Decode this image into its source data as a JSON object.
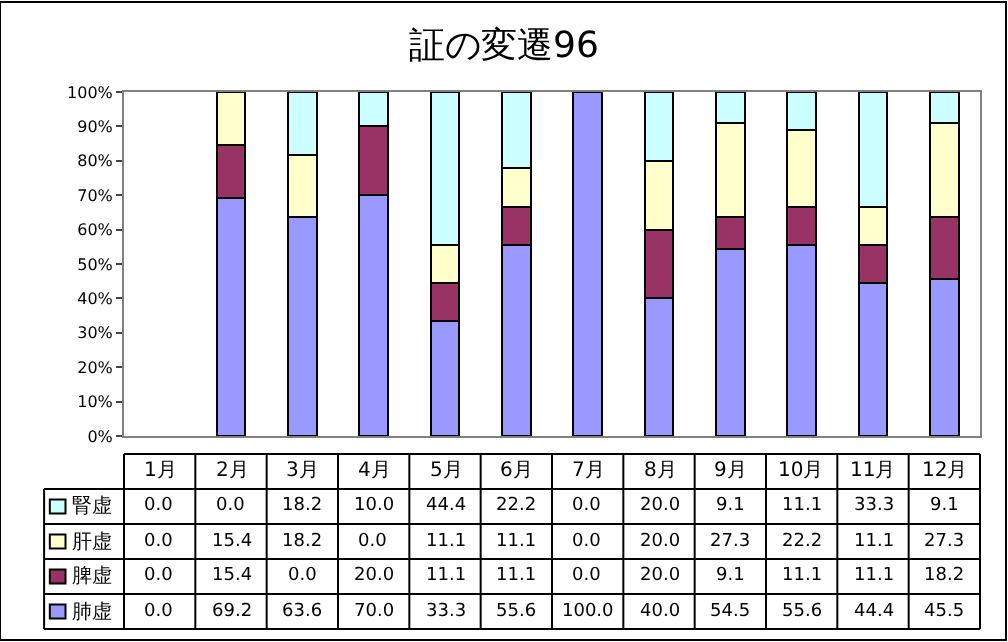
{
  "chart_data": {
    "type": "bar",
    "title": "証の変遷96",
    "stacked": true,
    "categories": [
      "1月",
      "2月",
      "3月",
      "4月",
      "5月",
      "6月",
      "7月",
      "8月",
      "9月",
      "10月",
      "11月",
      "12月"
    ],
    "series": [
      {
        "name": "肺虚",
        "color": "#9999ff",
        "values": [
          0.0,
          69.2,
          63.6,
          70.0,
          33.3,
          55.6,
          100.0,
          40.0,
          54.5,
          55.6,
          44.4,
          45.5
        ],
        "value_labels": [
          "0.0",
          "69.2",
          "63.6",
          "70.0",
          "33.3",
          "55.6",
          "100.0",
          "40.0",
          "54.5",
          "55.6",
          "44.4",
          "45.5"
        ]
      },
      {
        "name": "脾虚",
        "color": "#993366",
        "values": [
          0.0,
          15.4,
          0.0,
          20.0,
          11.1,
          11.1,
          0.0,
          20.0,
          9.1,
          11.1,
          11.1,
          18.2
        ],
        "value_labels": [
          "0.0",
          "15.4",
          "0.0",
          "20.0",
          "11.1",
          "11.1",
          "0.0",
          "20.0",
          "9.1",
          "11.1",
          "11.1",
          "18.2"
        ]
      },
      {
        "name": "肝虚",
        "color": "#ffffcc",
        "values": [
          0.0,
          15.4,
          18.2,
          0.0,
          11.1,
          11.1,
          0.0,
          20.0,
          27.3,
          22.2,
          11.1,
          27.3
        ],
        "value_labels": [
          "0.0",
          "15.4",
          "18.2",
          "0.0",
          "11.1",
          "11.1",
          "0.0",
          "20.0",
          "27.3",
          "22.2",
          "11.1",
          "27.3"
        ]
      },
      {
        "name": "腎虚",
        "color": "#ccffff",
        "values": [
          0.0,
          0.0,
          18.2,
          10.0,
          44.4,
          22.2,
          0.0,
          20.0,
          9.1,
          11.1,
          33.3,
          9.1
        ],
        "value_labels": [
          "0.0",
          "0.0",
          "18.2",
          "10.0",
          "44.4",
          "22.2",
          "0.0",
          "20.0",
          "9.1",
          "11.1",
          "33.3",
          "9.1"
        ]
      }
    ],
    "ylim": [
      0,
      100
    ],
    "yticks": [
      {
        "value": 0,
        "label": "0%"
      },
      {
        "value": 10,
        "label": "10%"
      },
      {
        "value": 20,
        "label": "20%"
      },
      {
        "value": 30,
        "label": "30%"
      },
      {
        "value": 40,
        "label": "40%"
      },
      {
        "value": 50,
        "label": "50%"
      },
      {
        "value": 60,
        "label": "60%"
      },
      {
        "value": 70,
        "label": "70%"
      },
      {
        "value": 80,
        "label": "80%"
      },
      {
        "value": 90,
        "label": "90%"
      },
      {
        "value": 100,
        "label": "100%"
      }
    ],
    "grid": false,
    "legend": "bottom left"
  }
}
